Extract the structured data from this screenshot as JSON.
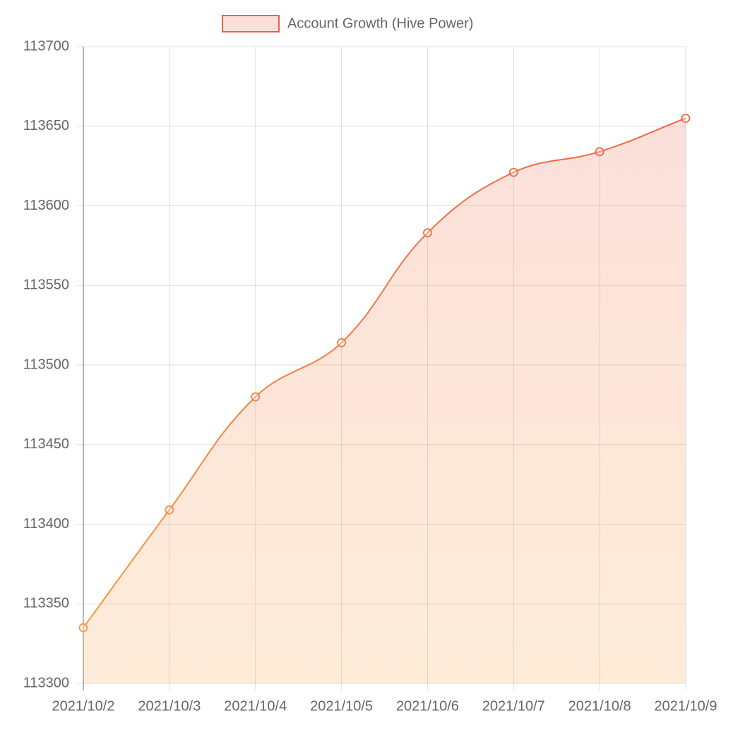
{
  "chart_data": {
    "type": "line",
    "categories": [
      "2021/10/2",
      "2021/10/3",
      "2021/10/4",
      "2021/10/5",
      "2021/10/6",
      "2021/10/7",
      "2021/10/8",
      "2021/10/9"
    ],
    "series": [
      {
        "name": "Account Growth (Hive Power)",
        "color": "#ef5e45",
        "color_bottom": "#f7a040",
        "values": [
          113335,
          113409,
          113480,
          113514,
          113583,
          113621,
          113634,
          113655
        ]
      }
    ],
    "ylim": [
      113300,
      113700
    ],
    "yticks": [
      113300,
      113350,
      113400,
      113450,
      113500,
      113550,
      113600,
      113650,
      113700
    ],
    "grid": true,
    "fill": true,
    "legend": "top"
  }
}
